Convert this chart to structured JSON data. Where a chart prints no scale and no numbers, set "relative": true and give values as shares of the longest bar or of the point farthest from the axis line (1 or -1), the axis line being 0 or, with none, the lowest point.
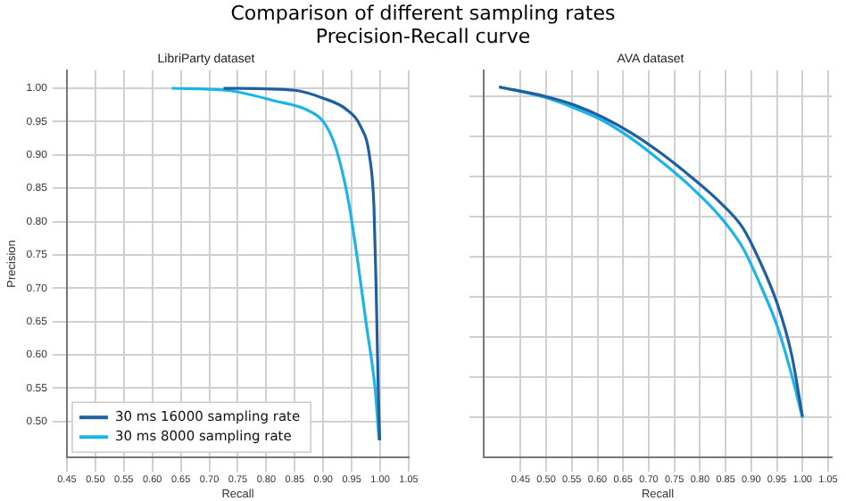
{
  "chart_data": [
    {
      "type": "line",
      "title": "LibriParty dataset",
      "annotations": [
        "Comparison of different sampling rates\nPrecision-Recall curve"
      ],
      "xlabel": "Recall",
      "ylabel": "Precision",
      "xlim": [
        0.45,
        1.05
      ],
      "xticks": [
        {
          "value": 0.45,
          "label": "0.45"
        },
        {
          "value": 0.5,
          "label": "0.50"
        },
        {
          "value": 0.55,
          "label": "0.55"
        },
        {
          "value": 0.6,
          "label": "0.60"
        },
        {
          "value": 0.65,
          "label": "0.65"
        },
        {
          "value": 0.7,
          "label": "0.70"
        },
        {
          "value": 0.75,
          "label": "0.75"
        },
        {
          "value": 0.8,
          "label": "0.80"
        },
        {
          "value": 0.85,
          "label": "0.85"
        },
        {
          "value": 0.9,
          "label": "0.90"
        },
        {
          "value": 0.95,
          "label": "0.95"
        },
        {
          "value": 1.0,
          "label": "1.00"
        },
        {
          "value": 1.05,
          "label": "1.05"
        }
      ],
      "ylim": [
        0.446,
        1.027
      ],
      "yticks": [
        {
          "value": 0.5,
          "label": "0.50"
        },
        {
          "value": 0.55,
          "label": "0.55"
        },
        {
          "value": 0.6,
          "label": "0.60"
        },
        {
          "value": 0.65,
          "label": "0.65"
        },
        {
          "value": 0.7,
          "label": "0.70"
        },
        {
          "value": 0.75,
          "label": "0.75"
        },
        {
          "value": 0.8,
          "label": "0.80"
        },
        {
          "value": 0.85,
          "label": "0.85"
        },
        {
          "value": 0.9,
          "label": "0.90"
        },
        {
          "value": 0.95,
          "label": "0.95"
        },
        {
          "value": 1.0,
          "label": "1.00"
        }
      ],
      "grid": true,
      "legend": "bottom left",
      "marker": "none",
      "series": [
        {
          "name": "30 ms 16000 sampling rate",
          "color": "#1f5fa0",
          "x": [
            0.725,
            0.85,
            0.9,
            0.941,
            0.966,
            0.981,
            0.989,
            0.993,
            0.996,
            0.999
          ],
          "values": [
            1.0,
            0.997,
            0.985,
            0.968,
            0.942,
            0.899,
            0.822,
            0.694,
            0.566,
            0.472
          ]
        },
        {
          "name": "30 ms 8000 sampling rate",
          "color": "#1cb4e8",
          "x": [
            0.634,
            0.73,
            0.82,
            0.87,
            0.9,
            0.92,
            0.936,
            0.946,
            0.961,
            0.976,
            0.991,
            0.998
          ],
          "values": [
            1.0,
            0.997,
            0.98,
            0.968,
            0.95,
            0.916,
            0.865,
            0.822,
            0.737,
            0.643,
            0.549,
            0.472
          ]
        }
      ]
    },
    {
      "type": "line",
      "title": "AVA dataset",
      "xlabel": "Recall",
      "relative": true,
      "xlim": [
        0.378,
        1.057
      ],
      "xticks": [
        {
          "value": 0.45,
          "label": "0.45"
        },
        {
          "value": 0.5,
          "label": "0.50"
        },
        {
          "value": 0.55,
          "label": "0.55"
        },
        {
          "value": 0.6,
          "label": "0.60"
        },
        {
          "value": 0.65,
          "label": "0.65"
        },
        {
          "value": 0.7,
          "label": "0.70"
        },
        {
          "value": 0.75,
          "label": "0.75"
        },
        {
          "value": 0.8,
          "label": "0.80"
        },
        {
          "value": 0.85,
          "label": "0.85"
        },
        {
          "value": 0.9,
          "label": "0.90"
        },
        {
          "value": 0.95,
          "label": "0.95"
        },
        {
          "value": 1.0,
          "label": "1.00"
        },
        {
          "value": 1.05,
          "label": "1.05"
        }
      ],
      "grid": true,
      "marker": "none",
      "series": [
        {
          "color": "#1f5fa0",
          "x": [
            0.408,
            0.499,
            0.555,
            0.612,
            0.668,
            0.725,
            0.781,
            0.838,
            0.883,
            0.917,
            0.951,
            0.979,
            1.0
          ],
          "values": [
            1.0,
            0.974,
            0.951,
            0.917,
            0.874,
            0.82,
            0.759,
            0.69,
            0.621,
            0.529,
            0.414,
            0.276,
            0.11
          ]
        },
        {
          "color": "#1cb4e8",
          "x": [
            0.408,
            0.499,
            0.555,
            0.612,
            0.668,
            0.725,
            0.781,
            0.838,
            0.883,
            0.917,
            0.951,
            0.979,
            1.0
          ],
          "values": [
            1.0,
            0.971,
            0.943,
            0.908,
            0.859,
            0.798,
            0.732,
            0.652,
            0.567,
            0.468,
            0.353,
            0.222,
            0.107
          ]
        }
      ]
    }
  ]
}
